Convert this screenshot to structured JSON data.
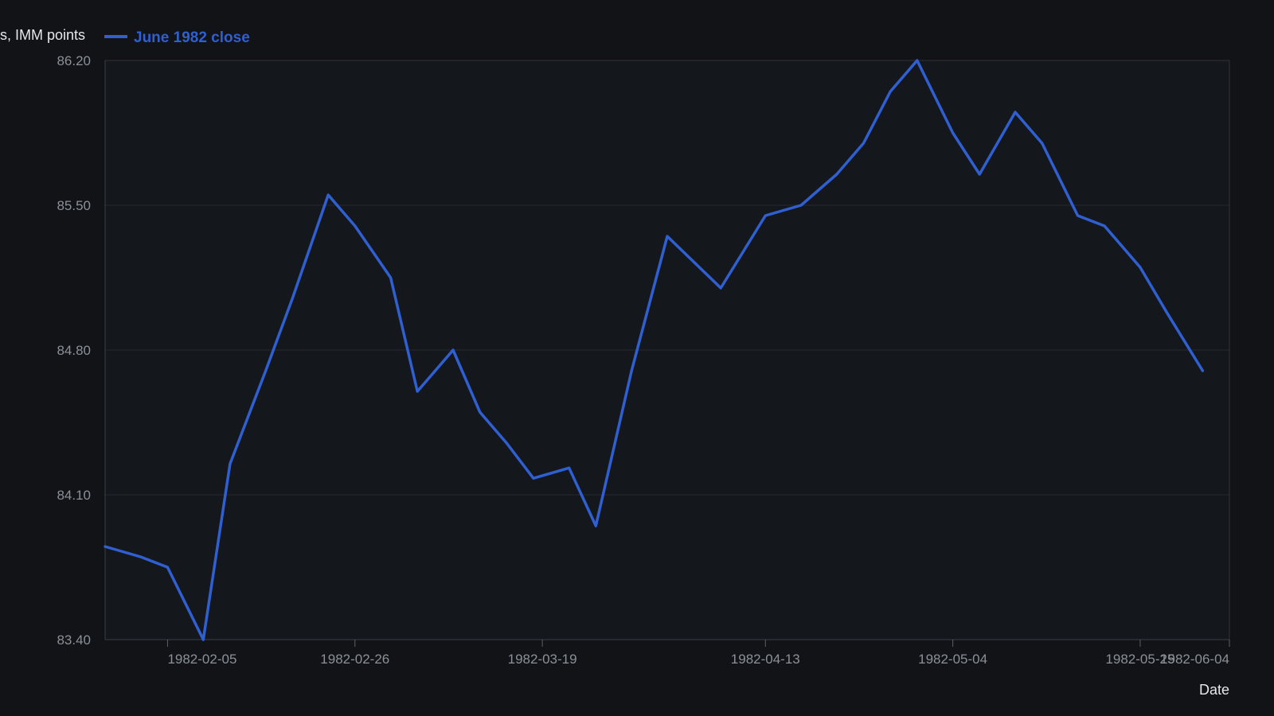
{
  "chart_data": {
    "type": "line",
    "title": "",
    "xlabel": "Date",
    "ylabel": "s, IMM points",
    "ylim": [
      83.4,
      86.2
    ],
    "y_ticks": [
      "83.40",
      "84.10",
      "84.80",
      "85.50",
      "86.20"
    ],
    "xlim": [
      "1982-01-29",
      "1982-06-04"
    ],
    "x_ticks": [
      "1982-02-05",
      "1982-02-26",
      "1982-03-19",
      "1982-04-13",
      "1982-05-04",
      "1982-05-25",
      "1982-06-04"
    ],
    "grid": true,
    "legend_position": "top-left",
    "series": [
      {
        "name": "June 1982 close",
        "color": "#2f5fd0",
        "x": [
          "1982-01-29",
          "1982-02-02",
          "1982-02-05",
          "1982-02-09",
          "1982-02-12",
          "1982-02-16",
          "1982-02-19",
          "1982-02-23",
          "1982-02-26",
          "1982-03-02",
          "1982-03-05",
          "1982-03-09",
          "1982-03-12",
          "1982-03-15",
          "1982-03-18",
          "1982-03-22",
          "1982-03-25",
          "1982-03-29",
          "1982-04-02",
          "1982-04-08",
          "1982-04-13",
          "1982-04-17",
          "1982-04-21",
          "1982-04-24",
          "1982-04-27",
          "1982-04-30",
          "1982-05-04",
          "1982-05-07",
          "1982-05-11",
          "1982-05-14",
          "1982-05-18",
          "1982-05-21",
          "1982-05-25",
          "1982-05-28",
          "1982-06-01",
          "1982-06-04"
        ],
        "values": [
          83.85,
          83.8,
          83.75,
          83.4,
          84.25,
          84.7,
          85.05,
          85.55,
          85.4,
          85.15,
          84.6,
          84.8,
          84.5,
          84.35,
          84.18,
          84.23,
          83.95,
          84.7,
          85.35,
          85.1,
          85.45,
          85.5,
          85.65,
          85.8,
          86.05,
          86.2,
          85.85,
          85.65,
          85.95,
          85.8,
          85.45,
          85.4,
          85.2,
          84.98,
          84.7,
          null
        ]
      }
    ]
  }
}
